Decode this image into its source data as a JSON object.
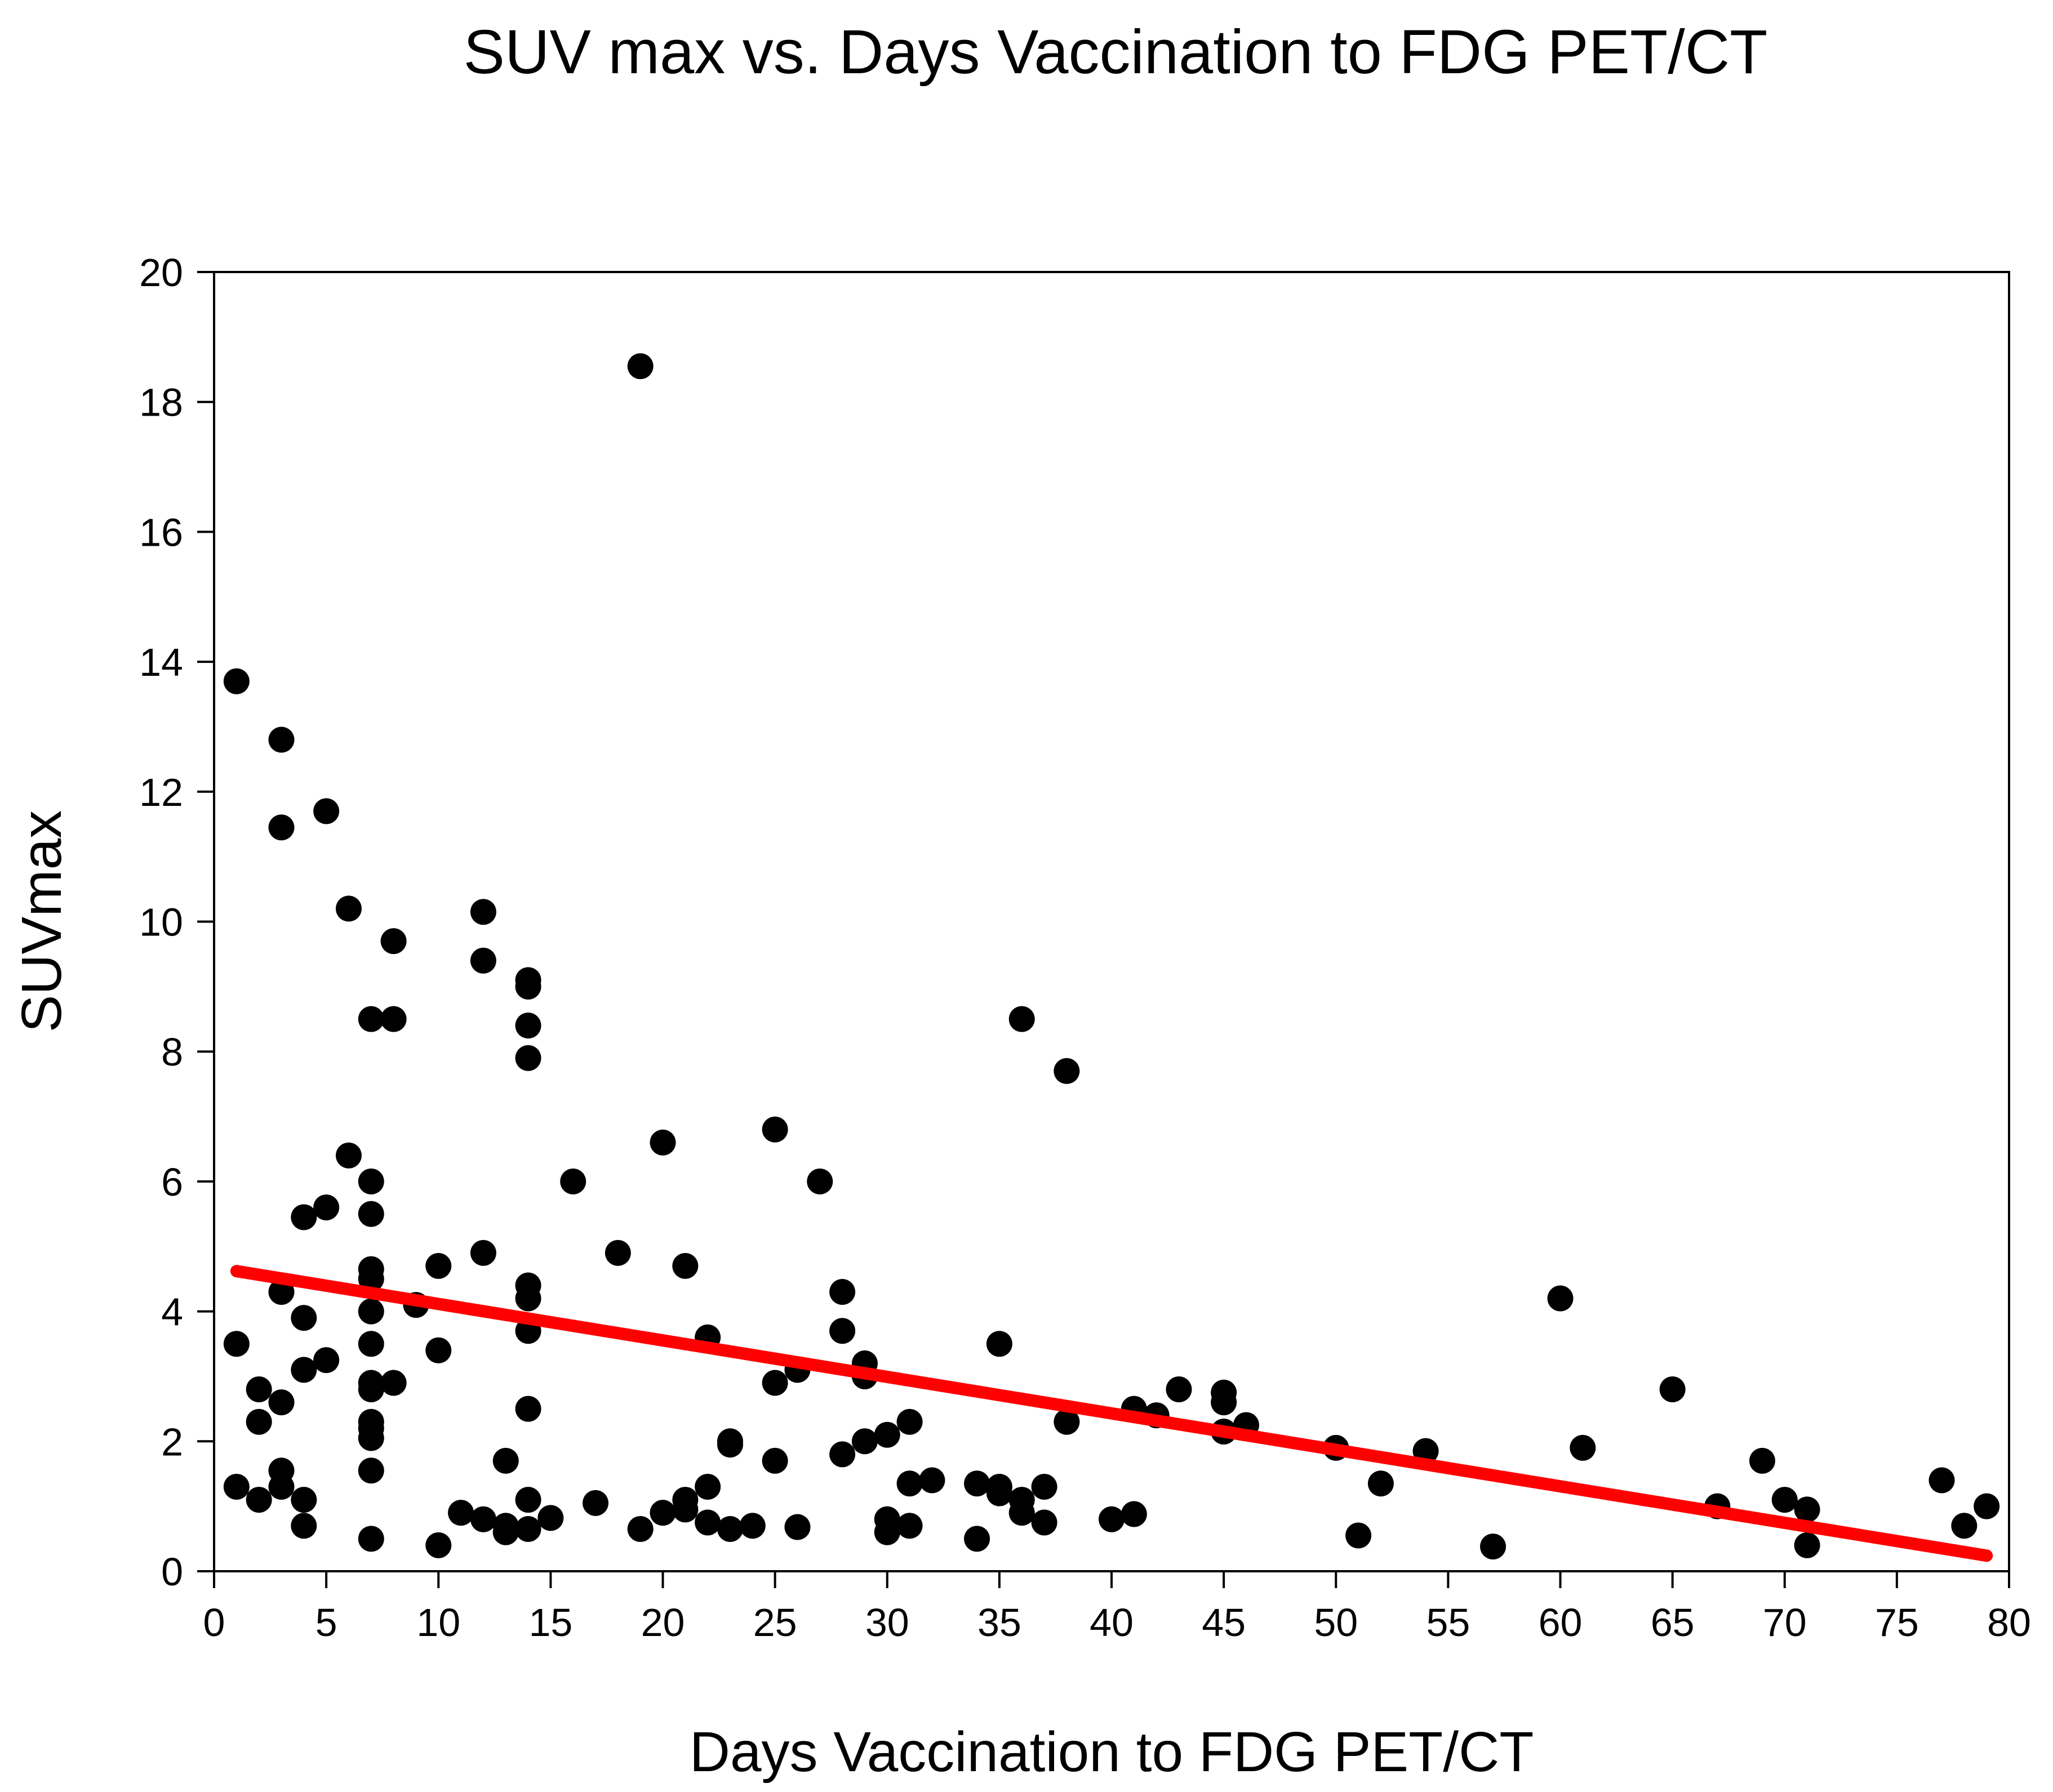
{
  "chart_data": {
    "type": "scatter",
    "title": "SUV max vs. Days Vaccination to FDG PET/CT",
    "xlabel": "Days Vaccination to FDG PET/CT",
    "ylabel": "SUVmax",
    "xlim": [
      0,
      80
    ],
    "ylim": [
      0,
      20
    ],
    "xticks": [
      "0",
      "5",
      "10",
      "15",
      "20",
      "25",
      "30",
      "35",
      "40",
      "45",
      "50",
      "55",
      "60",
      "65",
      "70",
      "75",
      "80"
    ],
    "yticks": [
      "0",
      "2",
      "4",
      "6",
      "8",
      "10",
      "12",
      "14",
      "16",
      "18",
      "20"
    ],
    "grid": false,
    "colors": {
      "points": "#000000",
      "trendline": "#ff0000",
      "axes": "#000000"
    },
    "series": [
      {
        "name": "SUVmax",
        "points": [
          [
            1,
            13.7
          ],
          [
            1,
            3.5
          ],
          [
            1,
            1.3
          ],
          [
            2,
            2.8
          ],
          [
            2,
            2.3
          ],
          [
            2,
            1.1
          ],
          [
            3,
            12.8
          ],
          [
            3,
            11.45
          ],
          [
            3,
            4.3
          ],
          [
            3,
            2.6
          ],
          [
            3,
            1.55
          ],
          [
            3,
            1.3
          ],
          [
            4,
            5.45
          ],
          [
            4,
            3.9
          ],
          [
            4,
            3.1
          ],
          [
            4,
            1.1
          ],
          [
            4,
            0.7
          ],
          [
            5,
            11.7
          ],
          [
            5,
            5.6
          ],
          [
            5,
            3.25
          ],
          [
            6,
            10.2
          ],
          [
            6,
            6.4
          ],
          [
            7,
            8.5
          ],
          [
            7,
            6.0
          ],
          [
            7,
            5.5
          ],
          [
            7,
            4.65
          ],
          [
            7,
            4.5
          ],
          [
            7,
            4.0
          ],
          [
            7,
            3.5
          ],
          [
            7,
            2.9
          ],
          [
            7,
            2.8
          ],
          [
            7,
            2.3
          ],
          [
            7,
            2.2
          ],
          [
            7,
            2.05
          ],
          [
            7,
            1.55
          ],
          [
            7,
            0.5
          ],
          [
            8,
            9.7
          ],
          [
            8,
            8.5
          ],
          [
            8,
            2.9
          ],
          [
            9,
            4.1
          ],
          [
            10,
            4.7
          ],
          [
            10,
            3.4
          ],
          [
            10,
            0.4
          ],
          [
            11,
            0.9
          ],
          [
            12,
            10.15
          ],
          [
            12,
            9.4
          ],
          [
            12,
            4.9
          ],
          [
            12,
            0.8
          ],
          [
            13,
            1.7
          ],
          [
            13,
            0.7
          ],
          [
            13,
            0.6
          ],
          [
            14,
            9.1
          ],
          [
            14,
            9.0
          ],
          [
            14,
            8.4
          ],
          [
            14,
            7.9
          ],
          [
            14,
            4.4
          ],
          [
            14,
            4.2
          ],
          [
            14,
            3.7
          ],
          [
            14,
            2.5
          ],
          [
            14,
            1.1
          ],
          [
            14,
            0.65
          ],
          [
            15,
            0.82
          ],
          [
            16,
            6.0
          ],
          [
            17,
            1.05
          ],
          [
            18,
            4.9
          ],
          [
            19,
            18.55
          ],
          [
            19,
            0.65
          ],
          [
            20,
            6.6
          ],
          [
            20,
            0.9
          ],
          [
            21,
            4.7
          ],
          [
            21,
            1.1
          ],
          [
            21,
            0.95
          ],
          [
            22,
            3.6
          ],
          [
            22,
            1.3
          ],
          [
            22,
            0.75
          ],
          [
            23,
            2.0
          ],
          [
            23,
            1.95
          ],
          [
            23,
            0.65
          ],
          [
            24,
            0.7
          ],
          [
            25,
            6.8
          ],
          [
            25,
            2.9
          ],
          [
            25,
            1.7
          ],
          [
            26,
            3.1
          ],
          [
            26,
            0.68
          ],
          [
            27,
            6.0
          ],
          [
            28,
            4.3
          ],
          [
            28,
            3.7
          ],
          [
            28,
            1.8
          ],
          [
            29,
            3.2
          ],
          [
            29,
            3.0
          ],
          [
            29,
            2.0
          ],
          [
            30,
            2.1
          ],
          [
            30,
            0.8
          ],
          [
            30,
            0.6
          ],
          [
            31,
            2.3
          ],
          [
            31,
            1.35
          ],
          [
            31,
            0.7
          ],
          [
            32,
            1.4
          ],
          [
            34,
            1.35
          ],
          [
            34,
            0.5
          ],
          [
            35,
            3.5
          ],
          [
            35,
            1.3
          ],
          [
            35,
            1.2
          ],
          [
            36,
            8.5
          ],
          [
            36,
            1.1
          ],
          [
            36,
            0.9
          ],
          [
            37,
            1.3
          ],
          [
            37,
            0.75
          ],
          [
            38,
            7.7
          ],
          [
            38,
            2.3
          ],
          [
            40,
            0.8
          ],
          [
            41,
            2.5
          ],
          [
            41,
            0.88
          ],
          [
            42,
            2.4
          ],
          [
            43,
            2.8
          ],
          [
            45,
            2.75
          ],
          [
            45,
            2.6
          ],
          [
            45,
            2.15
          ],
          [
            46,
            2.25
          ],
          [
            50,
            1.9
          ],
          [
            51,
            0.55
          ],
          [
            52,
            1.35
          ],
          [
            54,
            1.85
          ],
          [
            57,
            0.38
          ],
          [
            60,
            4.2
          ],
          [
            61,
            1.9
          ],
          [
            65,
            2.8
          ],
          [
            67,
            1.0
          ],
          [
            69,
            1.7
          ],
          [
            70,
            1.1
          ],
          [
            71,
            0.95
          ],
          [
            71,
            0.4
          ],
          [
            77,
            1.4
          ],
          [
            78,
            0.7
          ],
          [
            79,
            1.0
          ]
        ]
      }
    ],
    "trendline": {
      "x": [
        1,
        79
      ],
      "y": [
        4.62,
        0.24
      ]
    }
  }
}
